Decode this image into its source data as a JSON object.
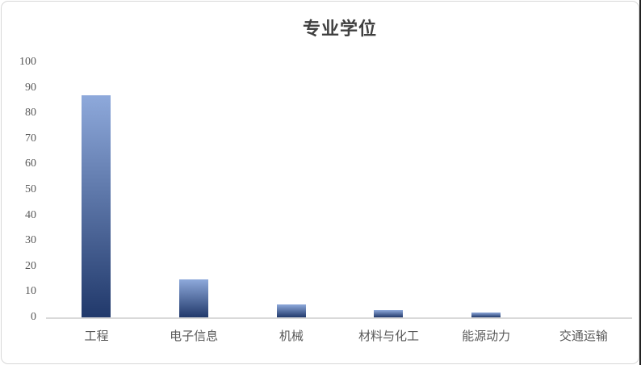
{
  "chart_data": {
    "type": "bar",
    "title": "专业学位",
    "categories": [
      "工程",
      "电子信息",
      "机械",
      "材料与化工",
      "能源动力",
      "交通运输"
    ],
    "values": [
      87,
      15,
      5,
      3,
      2,
      0
    ],
    "series": [
      {
        "name": "专业学位",
        "values": [
          87,
          15,
          5,
          3,
          2,
          0
        ]
      }
    ],
    "xlabel": "",
    "ylabel": "",
    "ylim": [
      0,
      100
    ],
    "yticks": [
      0,
      10,
      20,
      30,
      40,
      50,
      60,
      70,
      80,
      90,
      100
    ],
    "grid": false,
    "legend_position": "none",
    "colors": {
      "bar_gradient_top": "#8EA9DB",
      "bar_gradient_bottom": "#21396B",
      "axis_line": "#D9D9D9",
      "tick_label": "#595959",
      "category_label": "#595959",
      "title": "#404040",
      "chart_border": "#D8D8D8",
      "background": "#FFFFFF"
    }
  }
}
